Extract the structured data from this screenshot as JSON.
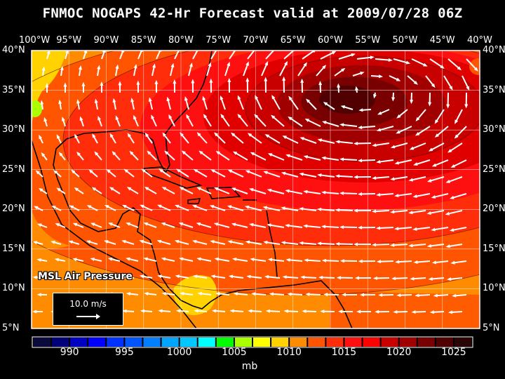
{
  "title": "FNMOC NOGAPS 42-Hr Forecast valid at 2009/07/28 06Z",
  "map": {
    "field": "MSL Air Pressure",
    "lon_labels": [
      "100°W",
      "95°W",
      "90°W",
      "85°W",
      "80°W",
      "75°W",
      "70°W",
      "65°W",
      "60°W",
      "55°W",
      "50°W",
      "45°W",
      "40°W"
    ],
    "lat_labels": [
      "40°N",
      "35°N",
      "30°N",
      "25°N",
      "20°N",
      "15°N",
      "10°N",
      "5°N"
    ],
    "lon_range": [
      -100,
      -40
    ],
    "lat_range": [
      5,
      40
    ],
    "grid_spacing_deg": 5,
    "high_pressure_center": {
      "lon": -55,
      "lat": 33
    },
    "wind_reference": {
      "label": "10.0 m/s",
      "value": 10.0,
      "unit": "m/s"
    }
  },
  "colorbar": {
    "unit": "mb",
    "tick_labels": [
      "990",
      "995",
      "1000",
      "1005",
      "1010",
      "1015",
      "1020",
      "1025"
    ],
    "colors": [
      "#0a0a3c",
      "#000078",
      "#0000c0",
      "#0000ff",
      "#0032ff",
      "#0055ff",
      "#0080ff",
      "#00a5ff",
      "#00c8ff",
      "#00ffff",
      "#00ff00",
      "#aaff00",
      "#ffff00",
      "#ffd200",
      "#ff8c00",
      "#ff5500",
      "#ff2d0a",
      "#ff1010",
      "#ff0000",
      "#c80000",
      "#a00000",
      "#780000",
      "#500000",
      "#2a0505"
    ]
  }
}
